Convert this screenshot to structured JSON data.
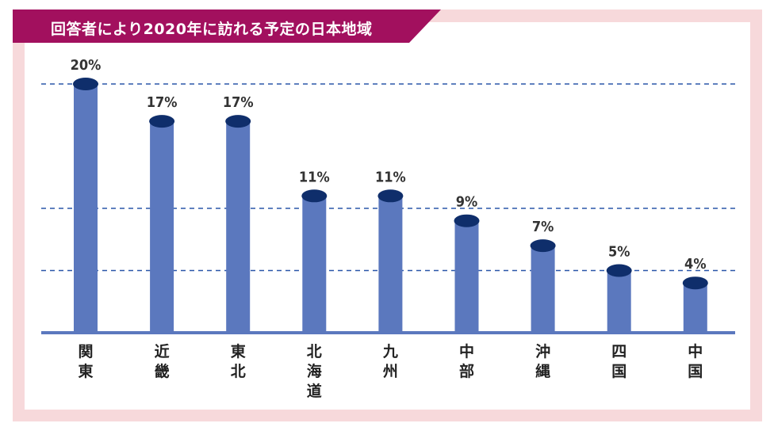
{
  "title": "回答者により2020年に訪れる予定の日本地域",
  "colors": {
    "banner": "#a2105e",
    "frame": "#f7d9db",
    "bar": "#5b78be",
    "bar_cap": "#0f2e6b",
    "gridline": "#2a56a8",
    "baseline": "#5b78be"
  },
  "chart_data": {
    "type": "bar",
    "title": "回答者により2020年に訪れる予定の日本地域",
    "categories": [
      "関東",
      "近畿",
      "東北",
      "北海道",
      "九州",
      "中部",
      "沖縄",
      "四国",
      "中国"
    ],
    "values": [
      20,
      17,
      17,
      11,
      11,
      9,
      7,
      5,
      4
    ],
    "data_labels": [
      "20%",
      "17%",
      "17%",
      "11%",
      "11%",
      "9%",
      "7%",
      "5%",
      "4%"
    ],
    "unit": "%",
    "ylim": [
      0,
      20
    ],
    "gridlines": [
      5,
      10,
      20
    ],
    "xlabel": "",
    "ylabel": ""
  }
}
